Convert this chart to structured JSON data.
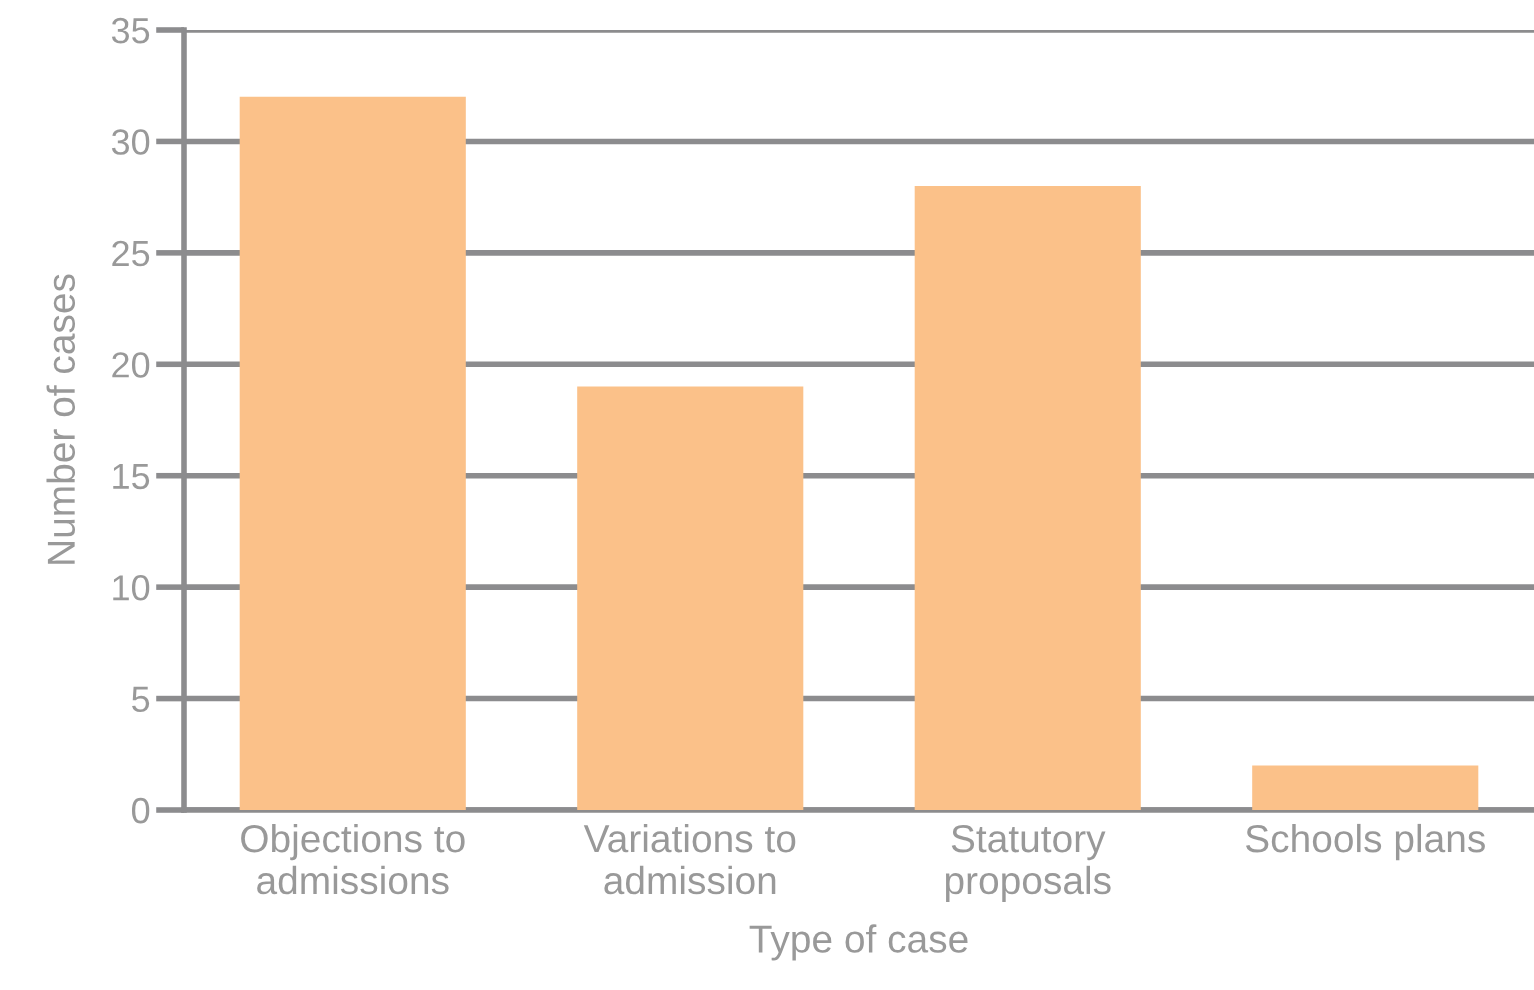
{
  "chart_data": {
    "type": "bar",
    "xlabel": "Type of case",
    "ylabel": "Number of cases",
    "categories": [
      "Objections to\nadmissions",
      "Variations to\nadmission",
      "Statutory\nproposals",
      "Schools plans"
    ],
    "values": [
      32,
      19,
      28,
      2
    ],
    "color": "#fbc189",
    "ylim": [
      0,
      35
    ],
    "yticks": [
      0,
      5,
      10,
      15,
      20,
      25,
      30,
      35
    ],
    "grid": "y",
    "legend": false
  }
}
